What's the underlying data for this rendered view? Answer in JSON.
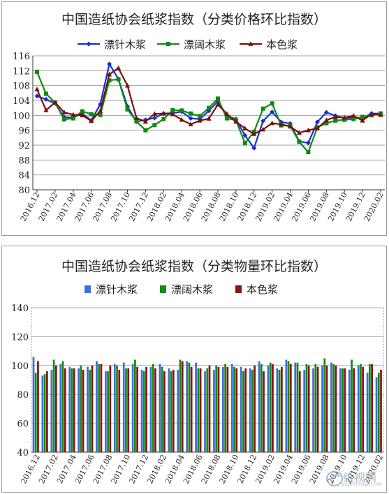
{
  "charts": [
    {
      "title": "中国造纸协会纸浆指数（分类价格环比指数）"
    },
    {
      "title": "中国造纸协会纸浆指数（分类物量环比指数）"
    }
  ],
  "watermark": {
    "text": "纸视网",
    "subtext": "paperinsight.net"
  },
  "chart_data": [
    {
      "type": "line",
      "title": "中国造纸协会纸浆指数（分类价格环比指数）",
      "x": [
        "2016.12",
        "2017.01",
        "2017.02",
        "2017.03",
        "2017.04",
        "2017.05",
        "2017.06",
        "2017.07",
        "2017.08",
        "2017.09",
        "2017.10",
        "2017.11",
        "2017.12",
        "2018.01",
        "2018.02",
        "2018.03",
        "2018.04",
        "2018.05",
        "2018.06",
        "2018.07",
        "2018.08",
        "2018.09",
        "2018.10",
        "2018.11",
        "2018.12",
        "2019.01",
        "2019.02",
        "2019.03",
        "2019.04",
        "2019.05",
        "2019.06",
        "2019.07",
        "2019.08",
        "2019.09",
        "2019.10",
        "2019.11",
        "2019.12",
        "2020.01",
        "2020.02"
      ],
      "x_tick_labels": [
        "2016.12",
        "2017.02",
        "2017.04",
        "2017.06",
        "2017.08",
        "2017.10",
        "2017.12",
        "2018.02",
        "2018.04",
        "2018.06",
        "2018.08",
        "2018.10",
        "2018.12",
        "2019.02",
        "2019.04",
        "2019.06",
        "2019.08",
        "2019.10",
        "2019.12",
        "2020.02"
      ],
      "ylim": [
        80,
        116
      ],
      "y_ticks": [
        80,
        84,
        88,
        92,
        96,
        100,
        104,
        108,
        112,
        116
      ],
      "grid": true,
      "legend": "top",
      "series": [
        {
          "name": "漂针木浆",
          "color": "#1a2ecc",
          "marker": "diamond",
          "values": [
            105.2,
            104.3,
            103.2,
            99.5,
            99.4,
            100.5,
            98.6,
            103.0,
            113.8,
            109.8,
            102.4,
            98.3,
            98.8,
            99.3,
            100.5,
            100.6,
            101.0,
            99.2,
            99.0,
            101.2,
            103.8,
            99.8,
            99.0,
            94.6,
            91.2,
            98.5,
            100.9,
            98.2,
            97.8,
            93.0,
            92.6,
            98.2,
            100.8,
            99.9,
            99.3,
            99.4,
            99.3,
            100.5,
            100.5
          ]
        },
        {
          "name": "漂阔木浆",
          "color": "#0f8a0f",
          "marker": "square",
          "values": [
            111.7,
            105.8,
            103.4,
            98.9,
            99.2,
            101.1,
            100.3,
            100.1,
            109.4,
            109.7,
            101.6,
            98.4,
            96.0,
            97.4,
            99.0,
            101.4,
            101.3,
            100.5,
            99.8,
            102.0,
            104.5,
            99.2,
            98.7,
            92.5,
            95.6,
            101.8,
            103.2,
            97.3,
            97.2,
            92.9,
            90.1,
            96.8,
            97.9,
            98.6,
            98.8,
            99.0,
            99.6,
            100.0,
            100.5
          ]
        },
        {
          "name": "本色浆",
          "color": "#7a0f0f",
          "marker": "triangle",
          "values": [
            107.0,
            101.4,
            103.5,
            100.8,
            100.2,
            100.0,
            98.5,
            101.2,
            111.0,
            112.7,
            108.0,
            99.3,
            98.3,
            100.4,
            100.5,
            100.3,
            98.8,
            97.6,
            98.6,
            99.1,
            102.9,
            100.4,
            98.3,
            96.5,
            95.0,
            96.2,
            97.9,
            97.6,
            97.0,
            95.3,
            96.0,
            96.5,
            98.7,
            99.6,
            99.4,
            99.9,
            98.6,
            100.4,
            100.1
          ]
        }
      ]
    },
    {
      "type": "bar",
      "title": "中国造纸协会纸浆指数（分类物量环比指数）",
      "categories": [
        "2016.12",
        "2017.01",
        "2017.02",
        "2017.03",
        "2017.04",
        "2017.05",
        "2017.06",
        "2017.07",
        "2017.08",
        "2017.09",
        "2017.10",
        "2017.11",
        "2017.12",
        "2018.01",
        "2018.02",
        "2018.03",
        "2018.04",
        "2018.05",
        "2018.06",
        "2018.07",
        "2018.08",
        "2018.09",
        "2018.10",
        "2018.11",
        "2018.12",
        "2019.01",
        "2019.02",
        "2019.03",
        "2019.04",
        "2019.05",
        "2019.06",
        "2019.07",
        "2019.08",
        "2019.09",
        "2019.10",
        "2019.11",
        "2019.12",
        "2020.01",
        "2020.02"
      ],
      "x_tick_labels": [
        "2016.12",
        "2017.02",
        "2017.04",
        "2017.06",
        "2017.08",
        "2017.10",
        "2017.12",
        "2018.02",
        "2018.04",
        "2018.06",
        "2018.08",
        "2018.10",
        "2018.12",
        "2019.02",
        "2019.04",
        "2019.06",
        "2019.08",
        "2019.10",
        "2019.12",
        "2020.02"
      ],
      "ylim": [
        40,
        140
      ],
      "y_ticks": [
        40,
        60,
        80,
        100,
        120,
        140
      ],
      "grid": true,
      "legend": "top",
      "series": [
        {
          "name": "漂针木浆",
          "color": "#3d6fd8",
          "values": [
            106,
            93,
            97,
            101,
            99,
            98,
            99,
            103,
            96,
            101,
            102,
            101,
            97,
            99,
            101,
            98,
            97,
            103,
            102,
            96,
            97,
            99,
            101,
            99,
            98,
            103,
            100,
            98,
            104,
            102,
            97,
            98,
            100,
            102,
            98,
            97,
            100,
            95,
            92
          ]
        },
        {
          "name": "漂阔木浆",
          "color": "#138c13",
          "values": [
            95,
            94,
            104,
            103,
            98,
            100,
            97,
            101,
            96,
            100,
            98,
            104,
            96,
            101,
            99,
            96,
            104,
            102,
            98,
            98,
            100,
            101,
            99,
            96,
            97,
            101,
            102,
            97,
            103,
            102,
            101,
            101,
            105,
            101,
            98,
            104,
            101,
            101,
            95
          ]
        },
        {
          "name": "本色浆",
          "color": "#8a1414",
          "values": [
            103,
            96,
            100,
            98,
            98,
            97,
            100,
            101,
            100,
            97,
            98,
            99,
            99,
            98,
            96,
            97,
            103,
            99,
            98,
            100,
            99,
            99,
            98,
            98,
            100,
            96,
            101,
            99,
            101,
            96,
            100,
            99,
            100,
            100,
            98,
            98,
            99,
            101,
            97
          ]
        }
      ]
    }
  ]
}
